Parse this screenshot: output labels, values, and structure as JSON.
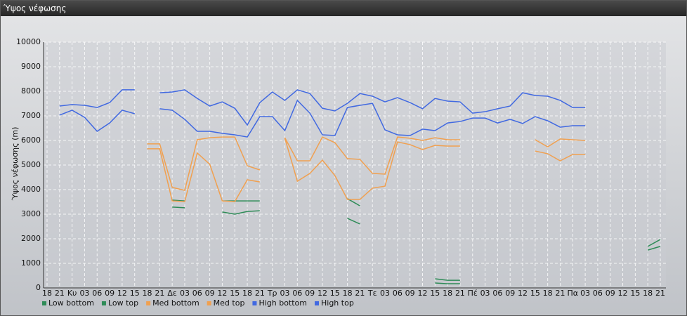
{
  "window_title": "Ύψος νέφωσης",
  "chart_data": {
    "type": "line",
    "y_label": "Ύψος νέφωσης (m)",
    "categories": [
      "18",
      "21",
      "Κυ",
      "03",
      "06",
      "09",
      "12",
      "15",
      "18",
      "21",
      "Δε",
      "03",
      "06",
      "09",
      "12",
      "15",
      "18",
      "21",
      "Τρ",
      "03",
      "06",
      "09",
      "12",
      "15",
      "18",
      "21",
      "Τε",
      "03",
      "06",
      "09",
      "12",
      "15",
      "18",
      "21",
      "Πέ",
      "03",
      "06",
      "09",
      "12",
      "15",
      "18",
      "21",
      "Πα",
      "03",
      "06",
      "09",
      "12",
      "15",
      "18",
      "21"
    ],
    "ylim": [
      0,
      10000
    ],
    "yticks": [
      0,
      1000,
      2000,
      3000,
      4000,
      5000,
      6000,
      7000,
      8000,
      9000,
      10000
    ],
    "grid": true,
    "series": [
      {
        "name": "Low bottom",
        "color": "#2e8b57",
        "values": [
          null,
          null,
          null,
          null,
          null,
          null,
          null,
          null,
          null,
          null,
          3290,
          3260,
          null,
          null,
          3090,
          3000,
          3110,
          3140,
          null,
          null,
          null,
          null,
          null,
          null,
          2830,
          2600,
          null,
          null,
          null,
          null,
          null,
          200,
          170,
          170,
          null,
          null,
          null,
          null,
          null,
          null,
          null,
          null,
          null,
          null,
          null,
          null,
          null,
          null,
          1540,
          1690
        ]
      },
      {
        "name": "Low top",
        "color": "#2e8b57",
        "values": [
          null,
          null,
          null,
          null,
          null,
          null,
          null,
          null,
          null,
          null,
          3570,
          3540,
          null,
          null,
          3540,
          3540,
          3540,
          3540,
          null,
          null,
          null,
          null,
          null,
          null,
          3630,
          3340,
          null,
          null,
          null,
          null,
          null,
          370,
          310,
          310,
          null,
          null,
          null,
          null,
          null,
          null,
          null,
          null,
          null,
          null,
          null,
          null,
          null,
          null,
          1690,
          1970
        ]
      },
      {
        "name": "Med bottom",
        "color": "#f0a050",
        "values": [
          null,
          null,
          null,
          null,
          null,
          null,
          null,
          null,
          5660,
          5660,
          3540,
          3510,
          5490,
          5030,
          3540,
          3510,
          4400,
          4310,
          null,
          6090,
          4340,
          4660,
          5200,
          4570,
          3600,
          3600,
          4060,
          4140,
          5940,
          5830,
          5630,
          5800,
          5770,
          5770,
          null,
          null,
          null,
          null,
          null,
          5570,
          5460,
          5170,
          5430,
          5430,
          null,
          null,
          null,
          null,
          null,
          null
        ]
      },
      {
        "name": "Med top",
        "color": "#f0a050",
        "values": [
          null,
          null,
          null,
          null,
          null,
          null,
          null,
          null,
          5860,
          5860,
          4090,
          3970,
          6030,
          6110,
          6140,
          6140,
          4970,
          4800,
          null,
          6110,
          5170,
          5170,
          6140,
          5910,
          5260,
          5230,
          4660,
          4630,
          6140,
          6090,
          6000,
          6110,
          6030,
          6030,
          null,
          null,
          null,
          null,
          null,
          6030,
          5740,
          6060,
          6030,
          6000,
          null,
          null,
          null,
          null,
          null,
          null
        ]
      },
      {
        "name": "High bottom",
        "color": "#4169e1",
        "values": [
          null,
          7030,
          7230,
          6940,
          6370,
          6710,
          7230,
          7090,
          null,
          7290,
          7230,
          6860,
          6370,
          6370,
          6290,
          6230,
          6140,
          6970,
          6970,
          6400,
          7630,
          7110,
          6230,
          6200,
          7340,
          7430,
          7510,
          6430,
          6230,
          6200,
          6460,
          6400,
          6710,
          6770,
          6910,
          6910,
          6710,
          6860,
          6690,
          6970,
          6800,
          6540,
          6600,
          6600,
          null,
          null,
          null,
          null,
          null,
          null
        ]
      },
      {
        "name": "High top",
        "color": "#4169e1",
        "values": [
          null,
          7400,
          7460,
          7430,
          7340,
          7540,
          8060,
          8060,
          null,
          7940,
          7970,
          8060,
          7710,
          7400,
          7570,
          7310,
          6630,
          7540,
          7970,
          7630,
          8060,
          7910,
          7310,
          7200,
          7510,
          7910,
          7800,
          7570,
          7740,
          7540,
          7290,
          7710,
          7600,
          7570,
          7110,
          7170,
          7290,
          7400,
          7940,
          7830,
          7800,
          7630,
          7340,
          7340,
          null,
          null,
          null,
          null,
          null,
          null
        ]
      }
    ]
  }
}
